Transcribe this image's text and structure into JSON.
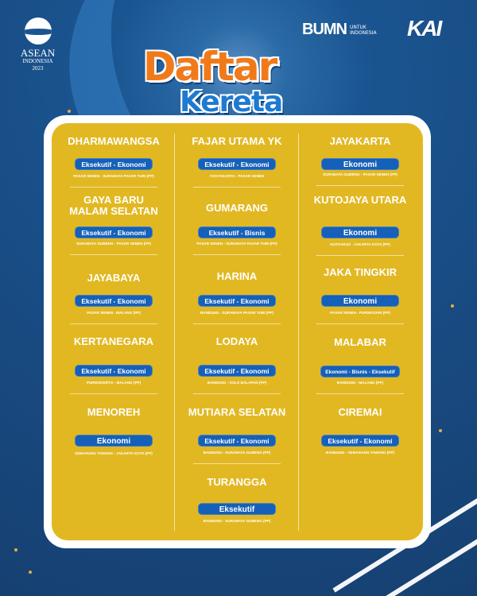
{
  "header": {
    "asean_logo": {
      "title": "ASEAN",
      "subtitle": "INDONESIA",
      "year": "2023"
    },
    "bumn_logo": {
      "mark": "BUMN",
      "line1": "UNTUK",
      "line2": "INDONESIA"
    },
    "kai_logo": "KAI",
    "title_line1": "Daftar",
    "title_line2": "Kereta"
  },
  "colors": {
    "background": "#184b82",
    "card": "#e2b822",
    "pill": "#1560b8",
    "title_orange": "#f07a1a",
    "title_blue": "#1e7ad0"
  },
  "columns": [
    [
      {
        "name": "DHARMAWANGSA",
        "class": "Eksekutif - Ekonomi",
        "route": "PASAR SENEN - SURABAYA PASAR TURI (PP)"
      },
      {
        "name": "GAYA BARU MALAM SELATAN",
        "class": "Eksekutif - Ekonomi",
        "route": "SURABAYA GUBENG - PASAR SENEN (PP)"
      },
      {
        "name": "JAYABAYA",
        "class": "Eksekutif - Ekonomi",
        "route": "PASAR SENEN - MALANG (PP)"
      },
      {
        "name": "KERTANEGARA",
        "class": "Eksekutif - Ekonomi",
        "route": "PURWOKERTO - MALANG (PP)"
      },
      {
        "name": "MENOREH",
        "class": "Ekonomi",
        "route": "SEMARANG TAWANG - JAKARTA KOTA (PP)"
      }
    ],
    [
      {
        "name": "FAJAR UTAMA YK",
        "class": "Eksekutif - Ekonomi",
        "route": "YOGYAKARTA - PASAR SENEN"
      },
      {
        "name": "GUMARANG",
        "class": "Eksekutif - Bisnis",
        "route": "PASAR SENEN - SURABAYA PASAR TURI (PP)"
      },
      {
        "name": "HARINA",
        "class": "Eksekutif - Ekonomi",
        "route": "BANDUNG - SURABAYA PASAR TURI (PP)"
      },
      {
        "name": "LODAYA",
        "class": "Eksekutif - Ekonomi",
        "route": "BANDUNG - SOLO BALAPAN (PP)"
      },
      {
        "name": "MUTIARA SELATAN",
        "class": "Eksekutif - Ekonomi",
        "route": "BANDUNG - SURABAYA GUBENG (PP)"
      },
      {
        "name": "TURANGGA",
        "class": "Eksekutif",
        "route": "BANDUNG - SURABAYA GUBENG (PP)"
      }
    ],
    [
      {
        "name": "JAYAKARTA",
        "class": "Ekonomi",
        "route": "SURABAYA GUBENG - PASAR SENEN (PP)"
      },
      {
        "name": "KUTOJAYA UTARA",
        "class": "Ekonomi",
        "route": "KUTOARJO - JAKARTA KOTA (PP)"
      },
      {
        "name": "JAKA TINGKIR",
        "class": "Ekonomi",
        "route": "PASAR SENEN - PURWOSARI (PP)"
      },
      {
        "name": "MALABAR",
        "class": "Ekonomi - Bisnis - Eksekutif",
        "route": "BANDUNG - MALANG (PP)"
      },
      {
        "name": "CIREMAI",
        "class": "Eksekutif - Ekonomi",
        "route": "BANDUNG - SEMARANG TAWANG (PP)"
      }
    ]
  ]
}
